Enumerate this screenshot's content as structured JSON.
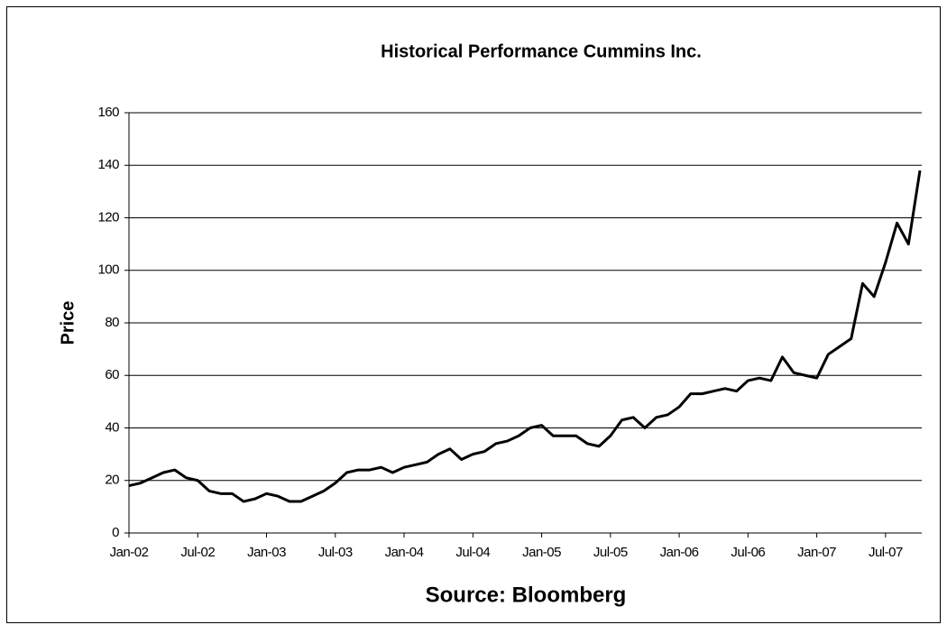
{
  "chart_data": {
    "type": "line",
    "title": "Historical Performance Cummins Inc.",
    "xlabel": "Source: Bloomberg",
    "ylabel": "Price",
    "x": [
      "2002-01",
      "2002-02",
      "2002-03",
      "2002-04",
      "2002-05",
      "2002-06",
      "2002-07",
      "2002-08",
      "2002-09",
      "2002-10",
      "2002-11",
      "2002-12",
      "2003-01",
      "2003-02",
      "2003-03",
      "2003-04",
      "2003-05",
      "2003-06",
      "2003-07",
      "2003-08",
      "2003-09",
      "2003-10",
      "2003-11",
      "2003-12",
      "2004-01",
      "2004-02",
      "2004-03",
      "2004-04",
      "2004-05",
      "2004-06",
      "2004-07",
      "2004-08",
      "2004-09",
      "2004-10",
      "2004-11",
      "2004-12",
      "2005-01",
      "2005-02",
      "2005-03",
      "2005-04",
      "2005-05",
      "2005-06",
      "2005-07",
      "2005-08",
      "2005-09",
      "2005-10",
      "2005-11",
      "2005-12",
      "2006-01",
      "2006-02",
      "2006-03",
      "2006-04",
      "2006-05",
      "2006-06",
      "2006-07",
      "2006-08",
      "2006-09",
      "2006-10",
      "2006-11",
      "2006-12",
      "2007-01",
      "2007-02",
      "2007-03",
      "2007-04",
      "2007-05",
      "2007-06",
      "2007-07",
      "2007-08",
      "2007-09",
      "2007-10"
    ],
    "series": [
      {
        "name": "Cummins Inc.",
        "color": "#000000",
        "values": [
          18,
          19,
          21,
          23,
          24,
          21,
          20,
          16,
          15,
          15,
          12,
          13,
          15,
          14,
          12,
          12,
          14,
          16,
          19,
          23,
          24,
          24,
          25,
          23,
          25,
          26,
          27,
          30,
          32,
          28,
          30,
          31,
          34,
          35,
          37,
          40,
          41,
          37,
          37,
          37,
          34,
          33,
          37,
          43,
          44,
          40,
          44,
          45,
          48,
          53,
          53,
          54,
          55,
          54,
          58,
          59,
          58,
          67,
          61,
          60,
          59,
          68,
          71,
          74,
          95,
          90,
          103,
          118,
          110,
          138
        ]
      }
    ],
    "xlim": [
      "2002-01",
      "2007-10"
    ],
    "xticks": [
      {
        "value": "2002-01",
        "label": "Jan-02"
      },
      {
        "value": "2002-07",
        "label": "Jul-02"
      },
      {
        "value": "2003-01",
        "label": "Jan-03"
      },
      {
        "value": "2003-07",
        "label": "Jul-03"
      },
      {
        "value": "2004-01",
        "label": "Jan-04"
      },
      {
        "value": "2004-07",
        "label": "Jul-04"
      },
      {
        "value": "2005-01",
        "label": "Jan-05"
      },
      {
        "value": "2005-07",
        "label": "Jul-05"
      },
      {
        "value": "2006-01",
        "label": "Jan-06"
      },
      {
        "value": "2006-07",
        "label": "Jul-06"
      },
      {
        "value": "2007-01",
        "label": "Jan-07"
      },
      {
        "value": "2007-07",
        "label": "Jul-07"
      }
    ],
    "ylim": [
      0,
      160
    ],
    "yticks": [
      0,
      20,
      40,
      60,
      80,
      100,
      120,
      140,
      160
    ],
    "grid": true
  }
}
